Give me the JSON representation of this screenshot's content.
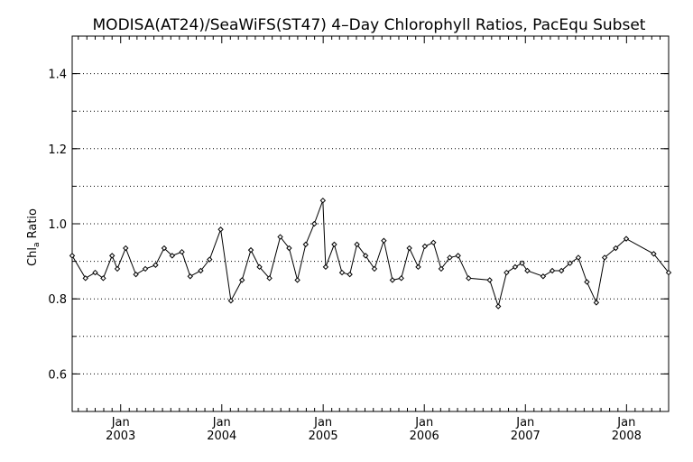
{
  "chart_data": {
    "type": "line",
    "title": "MODISA(AT24)/SeaWiFS(ST47) 4–Day Chlorophyll Ratios, PacEqu Subset",
    "ylabel_main": "Chl",
    "ylabel_sub": "a",
    "ylabel_rest": " Ratio",
    "xlabel": "",
    "ylim": [
      0.5,
      1.5
    ],
    "y_major_ticks": [
      0.6,
      0.8,
      1.0,
      1.2,
      1.4
    ],
    "y_tick_labels": [
      "0.6",
      "0.8",
      "1.0",
      "1.2",
      "1.4"
    ],
    "y_gridlines": [
      0.6,
      0.7,
      0.8,
      0.9,
      1.0,
      1.1,
      1.2,
      1.3,
      1.4
    ],
    "grid": true,
    "x_range": [
      "2002-07-10",
      "2008-06-01"
    ],
    "x_ticks": [
      {
        "date": "2003-01-01",
        "month": "Jan",
        "year": "2003"
      },
      {
        "date": "2004-01-01",
        "month": "Jan",
        "year": "2004"
      },
      {
        "date": "2005-01-01",
        "month": "Jan",
        "year": "2005"
      },
      {
        "date": "2006-01-01",
        "month": "Jan",
        "year": "2006"
      },
      {
        "date": "2007-01-01",
        "month": "Jan",
        "year": "2007"
      },
      {
        "date": "2008-01-01",
        "month": "Jan",
        "year": "2008"
      }
    ],
    "series": [
      {
        "color": "#000000",
        "points": [
          [
            "2002-07-10",
            0.915
          ],
          [
            "2002-08-27",
            0.855
          ],
          [
            "2002-10-01",
            0.87
          ],
          [
            "2002-10-30",
            0.855
          ],
          [
            "2002-12-01",
            0.915
          ],
          [
            "2002-12-20",
            0.88
          ],
          [
            "2003-01-19",
            0.935
          ],
          [
            "2003-02-25",
            0.865
          ],
          [
            "2003-03-31",
            0.88
          ],
          [
            "2003-05-07",
            0.89
          ],
          [
            "2003-06-07",
            0.935
          ],
          [
            "2003-07-06",
            0.915
          ],
          [
            "2003-08-10",
            0.925
          ],
          [
            "2003-09-09",
            0.86
          ],
          [
            "2003-10-17",
            0.875
          ],
          [
            "2003-11-18",
            0.905
          ],
          [
            "2003-12-28",
            0.985
          ],
          [
            "2004-02-03",
            0.795
          ],
          [
            "2004-03-14",
            0.85
          ],
          [
            "2004-04-15",
            0.93
          ],
          [
            "2004-05-16",
            0.885
          ],
          [
            "2004-06-21",
            0.855
          ],
          [
            "2004-07-30",
            0.965
          ],
          [
            "2004-08-31",
            0.935
          ],
          [
            "2004-09-30",
            0.85
          ],
          [
            "2004-10-30",
            0.945
          ],
          [
            "2004-11-30",
            1.0
          ],
          [
            "2004-12-31",
            1.062
          ],
          [
            "2005-01-10",
            0.885
          ],
          [
            "2005-02-10",
            0.945
          ],
          [
            "2005-03-10",
            0.87
          ],
          [
            "2005-04-07",
            0.865
          ],
          [
            "2005-05-03",
            0.945
          ],
          [
            "2005-06-03",
            0.915
          ],
          [
            "2005-07-05",
            0.88
          ],
          [
            "2005-08-08",
            0.955
          ],
          [
            "2005-09-08",
            0.85
          ],
          [
            "2005-10-10",
            0.855
          ],
          [
            "2005-11-08",
            0.935
          ],
          [
            "2005-12-10",
            0.885
          ],
          [
            "2006-01-03",
            0.94
          ],
          [
            "2006-02-03",
            0.95
          ],
          [
            "2006-03-03",
            0.88
          ],
          [
            "2006-04-03",
            0.91
          ],
          [
            "2006-05-03",
            0.915
          ],
          [
            "2006-06-10",
            0.855
          ],
          [
            "2006-08-25",
            0.85
          ],
          [
            "2006-09-25",
            0.78
          ],
          [
            "2006-10-25",
            0.87
          ],
          [
            "2006-11-25",
            0.885
          ],
          [
            "2006-12-20",
            0.895
          ],
          [
            "2007-01-08",
            0.875
          ],
          [
            "2007-03-06",
            0.86
          ],
          [
            "2007-04-08",
            0.875
          ],
          [
            "2007-05-11",
            0.875
          ],
          [
            "2007-06-11",
            0.895
          ],
          [
            "2007-07-11",
            0.91
          ],
          [
            "2007-08-11",
            0.845
          ],
          [
            "2007-09-14",
            0.79
          ],
          [
            "2007-10-14",
            0.91
          ],
          [
            "2007-11-23",
            0.935
          ],
          [
            "2007-12-31",
            0.96
          ],
          [
            "2008-04-08",
            0.92
          ],
          [
            "2008-06-01",
            0.87
          ]
        ]
      }
    ]
  }
}
